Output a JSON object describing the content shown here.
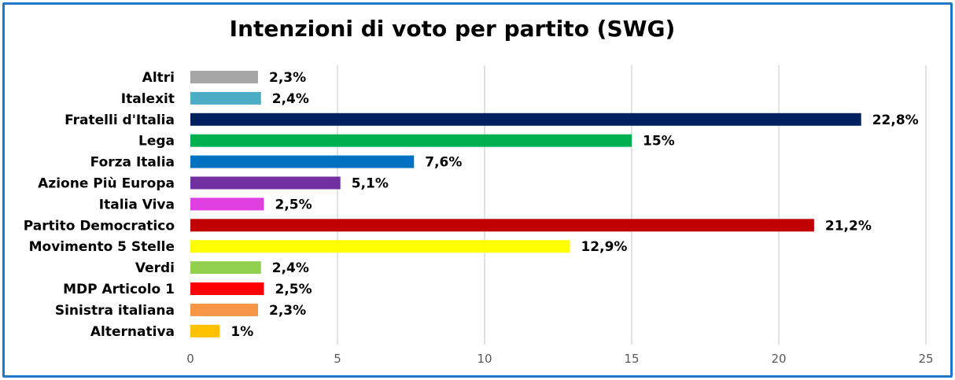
{
  "chart_data": {
    "type": "bar",
    "orientation": "horizontal",
    "title": "Intenzioni di voto per partito (SWG)",
    "categories": [
      "Altri",
      "Italexit",
      "Fratelli d'Italia",
      "Lega",
      "Forza Italia",
      "Azione Più Europa",
      "Italia Viva",
      "Partito Democratico",
      "Movimento 5 Stelle",
      "Verdi",
      "MDP Articolo 1",
      "Sinistra italiana",
      "Alternativa"
    ],
    "values": [
      2.3,
      2.4,
      22.8,
      15,
      7.6,
      5.1,
      2.5,
      21.2,
      12.9,
      2.4,
      2.5,
      2.3,
      1
    ],
    "value_labels": [
      "2,3%",
      "2,4%",
      "22,8%",
      "15%",
      "7,6%",
      "5,1%",
      "2,5%",
      "21,2%",
      "12,9%",
      "2,4%",
      "2,5%",
      "2,3%",
      "1%"
    ],
    "colors": [
      "#a6a6a6",
      "#4bacc6",
      "#002060",
      "#00b050",
      "#0070c0",
      "#7030a0",
      "#e040e0",
      "#c00000",
      "#ffff00",
      "#92d050",
      "#ff0000",
      "#f79646",
      "#ffc000"
    ],
    "xlim": [
      0,
      25
    ],
    "xticks": [
      "0",
      "5",
      "10",
      "15",
      "20",
      "25"
    ],
    "xtick_values": [
      0,
      5,
      10,
      15,
      20,
      25
    ],
    "grid": true,
    "legend": "none"
  }
}
